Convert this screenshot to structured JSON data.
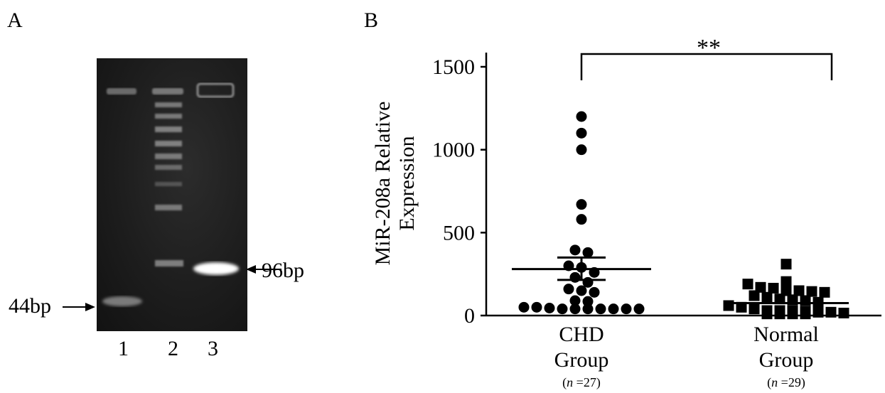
{
  "panels": {
    "a_label": "A",
    "b_label": "B"
  },
  "gel": {
    "lanes": [
      "1",
      "2",
      "3"
    ],
    "band_labels": {
      "lane1": "44bp",
      "lane3": "96bp"
    }
  },
  "chart_data": {
    "type": "scatter",
    "ylabel_line1": "MiR-208a Relative",
    "ylabel_line2": "Expression",
    "ylim": [
      0,
      1500
    ],
    "yticks": [
      0,
      500,
      1000,
      1500
    ],
    "significance": "**",
    "groups": [
      {
        "name_line1": "CHD",
        "name_line2": "Group",
        "n_prefix": "(",
        "n_var": "n",
        "n_suffix": " =27)",
        "marker": "circle",
        "mean": 280,
        "sem_upper": 350,
        "sem_lower": 215,
        "values": [
          1200,
          1100,
          1000,
          670,
          580,
          395,
          380,
          300,
          290,
          260,
          230,
          200,
          160,
          150,
          140,
          90,
          85,
          50,
          50,
          45,
          40,
          40,
          40,
          40,
          40,
          40,
          40
        ]
      },
      {
        "name_line1": "Normal",
        "name_line2": "Group",
        "n_prefix": "(",
        "n_var": "n",
        "n_suffix": " =29)",
        "marker": "square",
        "mean": 75,
        "sem_upper": 75,
        "sem_lower": 75,
        "values": [
          310,
          205,
          190,
          170,
          165,
          150,
          150,
          145,
          140,
          120,
          110,
          100,
          95,
          90,
          80,
          60,
          50,
          40,
          30,
          30,
          30,
          25,
          20,
          20,
          15,
          10,
          10,
          10,
          10
        ]
      }
    ]
  }
}
